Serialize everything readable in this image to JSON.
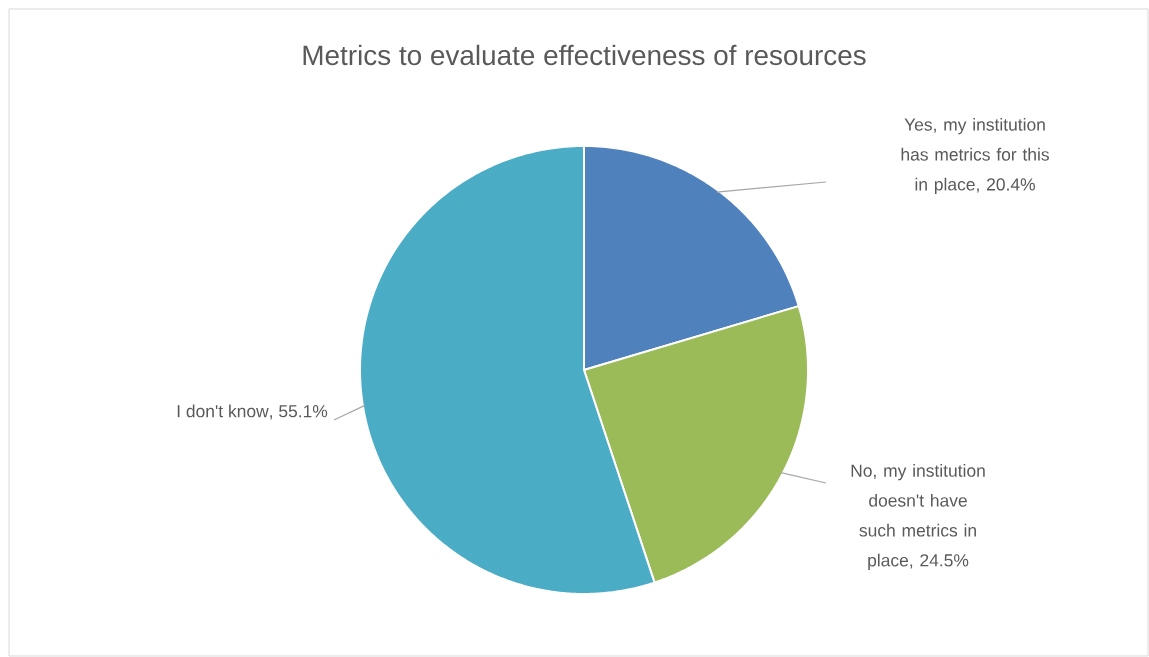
{
  "chart_data": {
    "type": "pie",
    "title": "Metrics to evaluate effectiveness of resources",
    "categories": [
      "Yes, my institution has metrics for this in place",
      "No, my institution doesn't have such metrics in place",
      "I don't know"
    ],
    "values": [
      20.4,
      24.5,
      55.1
    ],
    "value_labels": [
      ", 20.4%",
      ", 24.5%",
      ", 55.1%"
    ],
    "colors": [
      "#4f81bd",
      "#9bbb59",
      "#4bacc6"
    ]
  }
}
